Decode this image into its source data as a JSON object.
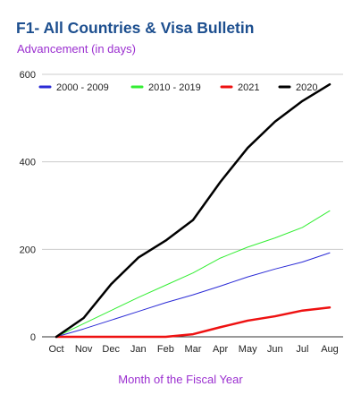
{
  "chart_data": {
    "type": "line",
    "title": "F1- All Countries & Visa Bulletin",
    "subtitle": "Advancement (in days)",
    "xlabel": "Month of the Fiscal Year",
    "ylabel": "",
    "categories": [
      "Oct",
      "Nov",
      "Dec",
      "Jan",
      "Feb",
      "Mar",
      "Apr",
      "May",
      "Jun",
      "Jul",
      "Aug"
    ],
    "ylim": [
      0,
      600
    ],
    "yticks": [
      "0",
      "200",
      "400",
      "600"
    ],
    "grid": true,
    "legend_position": "top",
    "series": [
      {
        "name": "2000 - 2009",
        "color": "#2b2bd6",
        "width": 1,
        "values": [
          0,
          18,
          38,
          58,
          78,
          96,
          116,
          137,
          155,
          171,
          192
        ]
      },
      {
        "name": "2010 - 2019",
        "color": "#33ee33",
        "width": 1,
        "values": [
          0,
          30,
          60,
          90,
          118,
          146,
          180,
          205,
          226,
          250,
          288
        ]
      },
      {
        "name": "2021",
        "color": "#ee1111",
        "width": 2.5,
        "values": [
          0,
          0,
          0,
          0,
          0,
          6,
          22,
          37,
          47,
          60,
          67
        ]
      },
      {
        "name": "2020",
        "color": "#000000",
        "width": 2.5,
        "values": [
          0,
          43,
          120,
          181,
          220,
          267,
          354,
          432,
          492,
          539,
          577
        ]
      }
    ]
  }
}
